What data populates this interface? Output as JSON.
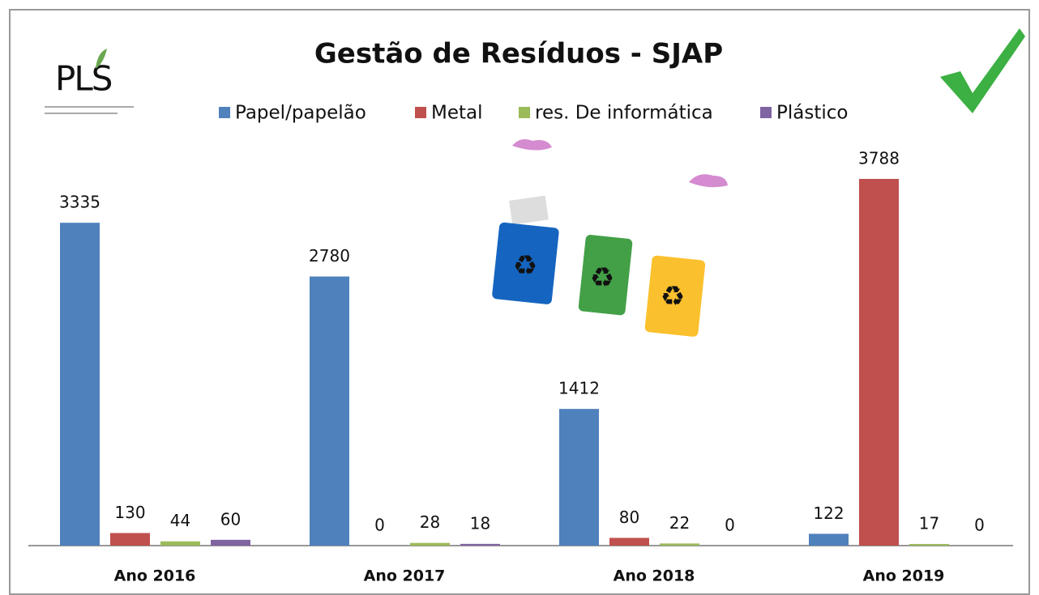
{
  "logo": "PLS",
  "chart_data": {
    "type": "bar",
    "title": "Gestão de Resíduos - SJAP",
    "categories": [
      "Ano 2016",
      "Ano 2017",
      "Ano 2018",
      "Ano 2019"
    ],
    "series": [
      {
        "name": "Papel/papelão",
        "color": "#4f81bd",
        "values": [
          3335,
          2780,
          1412,
          122
        ]
      },
      {
        "name": "Metal",
        "color": "#c0504d",
        "values": [
          130,
          0,
          80,
          3788
        ]
      },
      {
        "name": "res. De informática",
        "color": "#9bbb59",
        "values": [
          44,
          28,
          22,
          17
        ]
      },
      {
        "name": "Plástico",
        "color": "#8064a2",
        "values": [
          60,
          18,
          0,
          0
        ]
      }
    ],
    "legend": "top"
  }
}
